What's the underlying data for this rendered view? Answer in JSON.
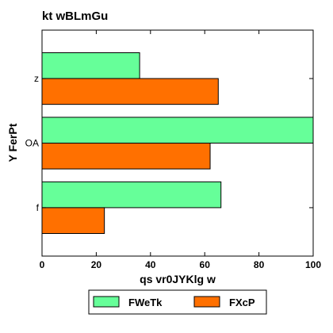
{
  "chart_data": {
    "type": "bar",
    "orientation": "horizontal",
    "title": "kt wBLmGu",
    "xlabel": "qs vr0JYKlg w",
    "ylabel": "Y FerPt",
    "categories": [
      "f",
      "OA",
      "z"
    ],
    "series": [
      {
        "name": "FWeTk",
        "color": "#66ff99",
        "values": [
          66,
          100,
          36
        ]
      },
      {
        "name": "FXcP",
        "color": "#ff7000",
        "values": [
          23,
          62,
          65
        ]
      }
    ],
    "xlim": [
      0,
      100
    ],
    "xticks": [
      "0",
      "20",
      "40",
      "60",
      "80",
      "100"
    ],
    "grid": false,
    "legend_position": "bottom"
  }
}
